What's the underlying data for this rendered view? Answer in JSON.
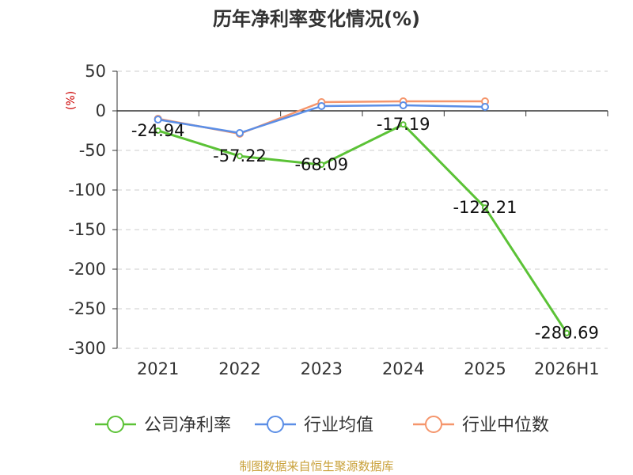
{
  "chart_data": {
    "type": "line",
    "title": "历年净利率变化情况(%)",
    "unit_label": "(%)",
    "categories": [
      "2021",
      "2022",
      "2023",
      "2024",
      "2025",
      "2026H1"
    ],
    "yticks": [
      "50",
      "0",
      "-50",
      "-100",
      "-150",
      "-200",
      "-250",
      "-300"
    ],
    "ylim": [
      -300,
      50
    ],
    "grid": true,
    "legend_position": "bottom",
    "series": [
      {
        "name": "公司净利率",
        "color": "#5bc236",
        "values": [
          -24.94,
          -57.22,
          -68.09,
          -17.19,
          -122.21,
          -280.69
        ],
        "labels": [
          "-24.94",
          "-57.22",
          "-68.09",
          "-17.19",
          "-122.21",
          "-280.69"
        ]
      },
      {
        "name": "行业均值",
        "color": "#5b8ee6",
        "values": [
          -11,
          -28,
          6,
          7,
          5,
          null
        ]
      },
      {
        "name": "行业中位数",
        "color": "#f5956b",
        "values": [
          -10,
          -29,
          11,
          12,
          12,
          null
        ]
      }
    ],
    "source": "制图数据来自恒生聚源数据库"
  }
}
